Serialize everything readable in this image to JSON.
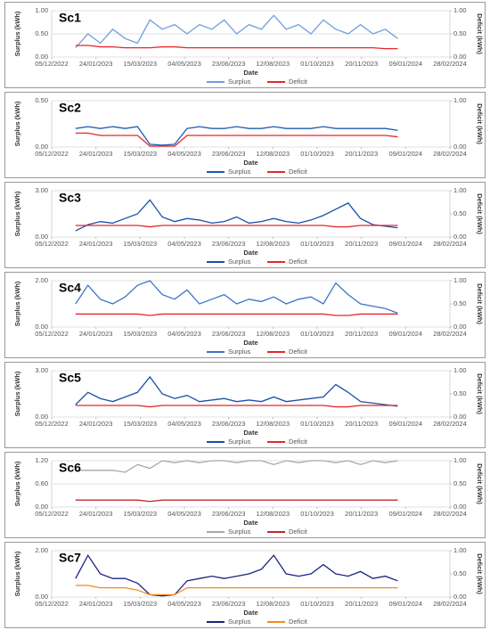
{
  "chart_data": [
    {
      "type": "line",
      "title": "Sc1",
      "xlabel": "Date",
      "ylabel": "Surplus (kWh)",
      "y2label": "Deficit (kWh)",
      "grid": true,
      "x": [
        "01/01/2023",
        "15/01/2023",
        "29/01/2023",
        "12/02/2023",
        "26/02/2023",
        "12/03/2023",
        "26/03/2023",
        "09/04/2023",
        "23/04/2023",
        "07/05/2023",
        "21/05/2023",
        "04/06/2023",
        "18/06/2023",
        "02/07/2023",
        "16/07/2023",
        "30/07/2023",
        "13/08/2023",
        "27/08/2023",
        "10/09/2023",
        "24/09/2023",
        "08/10/2023",
        "22/10/2023",
        "05/11/2023",
        "19/11/2023",
        "03/12/2023",
        "17/12/2023",
        "31/12/2023"
      ],
      "xlim": [
        "05/12/2022",
        "28/02/2024"
      ],
      "xticks": [
        "05/12/2022",
        "24/01/2023",
        "15/03/2023",
        "04/05/2023",
        "23/06/2023",
        "12/08/2023",
        "01/10/2023",
        "20/11/2023",
        "09/01/2024",
        "28/02/2024"
      ],
      "ylim": [
        0,
        1
      ],
      "yticks": [
        {
          "value": 0,
          "label": "0.00"
        },
        {
          "value": 0.5,
          "label": "0.50"
        },
        {
          "value": 1,
          "label": "1.00"
        }
      ],
      "y2lim": [
        0,
        1
      ],
      "y2ticks": [
        {
          "value": 0,
          "label": "0.00"
        },
        {
          "value": 0.5,
          "label": "0.50"
        },
        {
          "value": 1,
          "label": "1.00"
        }
      ],
      "series": [
        {
          "name": "Surplus",
          "color": "#6f9fdc",
          "values": [
            0.2,
            0.5,
            0.3,
            0.6,
            0.4,
            0.3,
            0.8,
            0.6,
            0.7,
            0.5,
            0.7,
            0.6,
            0.8,
            0.5,
            0.7,
            0.6,
            0.9,
            0.6,
            0.7,
            0.5,
            0.8,
            0.6,
            0.5,
            0.7,
            0.5,
            0.6,
            0.4
          ]
        },
        {
          "name": "Deficit",
          "color": "#e8262b",
          "axis": "y2",
          "values": [
            0.25,
            0.25,
            0.22,
            0.22,
            0.2,
            0.2,
            0.2,
            0.22,
            0.22,
            0.2,
            0.2,
            0.2,
            0.2,
            0.2,
            0.2,
            0.2,
            0.2,
            0.2,
            0.2,
            0.2,
            0.2,
            0.2,
            0.2,
            0.2,
            0.2,
            0.18,
            0.18
          ]
        }
      ]
    },
    {
      "type": "line",
      "title": "Sc2",
      "xlabel": "Date",
      "ylabel": "Surplus (kWh)",
      "y2label": "Deficit (kWh)",
      "grid": true,
      "x": [
        "01/01/2023",
        "15/01/2023",
        "29/01/2023",
        "12/02/2023",
        "26/02/2023",
        "12/03/2023",
        "26/03/2023",
        "09/04/2023",
        "23/04/2023",
        "07/05/2023",
        "21/05/2023",
        "04/06/2023",
        "18/06/2023",
        "02/07/2023",
        "16/07/2023",
        "30/07/2023",
        "13/08/2023",
        "27/08/2023",
        "10/09/2023",
        "24/09/2023",
        "08/10/2023",
        "22/10/2023",
        "05/11/2023",
        "19/11/2023",
        "03/12/2023",
        "17/12/2023",
        "31/12/2023"
      ],
      "xlim": [
        "05/12/2022",
        "28/02/2024"
      ],
      "xticks": [
        "05/12/2022",
        "24/01/2023",
        "15/03/2023",
        "04/05/2023",
        "23/06/2023",
        "12/08/2023",
        "01/10/2023",
        "20/11/2023",
        "09/01/2024",
        "28/02/2024"
      ],
      "ylim": [
        0,
        0.5
      ],
      "yticks": [
        {
          "value": 0,
          "label": "0.00"
        },
        {
          "value": 0.5,
          "label": "0.50"
        }
      ],
      "y2lim": [
        0,
        1
      ],
      "y2ticks": [
        {
          "value": 0,
          "label": "0.00"
        },
        {
          "value": 1,
          "label": "1.00"
        }
      ],
      "series": [
        {
          "name": "Surplus",
          "color": "#1f5bb5",
          "values": [
            0.2,
            0.22,
            0.2,
            0.22,
            0.2,
            0.22,
            0.03,
            0.02,
            0.03,
            0.2,
            0.22,
            0.2,
            0.2,
            0.22,
            0.2,
            0.2,
            0.22,
            0.2,
            0.2,
            0.2,
            0.22,
            0.2,
            0.2,
            0.2,
            0.2,
            0.2,
            0.18
          ]
        },
        {
          "name": "Deficit",
          "color": "#e8262b",
          "axis": "y2",
          "values": [
            0.3,
            0.3,
            0.25,
            0.25,
            0.25,
            0.25,
            0.02,
            0.02,
            0.02,
            0.25,
            0.25,
            0.25,
            0.25,
            0.25,
            0.25,
            0.25,
            0.25,
            0.25,
            0.25,
            0.25,
            0.25,
            0.25,
            0.25,
            0.25,
            0.25,
            0.25,
            0.22
          ]
        }
      ]
    },
    {
      "type": "line",
      "title": "Sc3",
      "xlabel": "Date",
      "ylabel": "Surplus (kWh)",
      "y2label": "Deficit (kWh)",
      "grid": true,
      "x": [
        "01/01/2023",
        "15/01/2023",
        "29/01/2023",
        "12/02/2023",
        "26/02/2023",
        "12/03/2023",
        "26/03/2023",
        "09/04/2023",
        "23/04/2023",
        "07/05/2023",
        "21/05/2023",
        "04/06/2023",
        "18/06/2023",
        "02/07/2023",
        "16/07/2023",
        "30/07/2023",
        "13/08/2023",
        "27/08/2023",
        "10/09/2023",
        "24/09/2023",
        "08/10/2023",
        "22/10/2023",
        "05/11/2023",
        "19/11/2023",
        "03/12/2023",
        "17/12/2023",
        "31/12/2023"
      ],
      "xlim": [
        "05/12/2022",
        "28/02/2024"
      ],
      "xticks": [
        "05/12/2022",
        "24/01/2023",
        "15/03/2023",
        "04/05/2023",
        "23/06/2023",
        "12/08/2023",
        "01/10/2023",
        "20/11/2023",
        "09/01/2024",
        "28/02/2024"
      ],
      "ylim": [
        0,
        3
      ],
      "yticks": [
        {
          "value": 0,
          "label": "0.00"
        },
        {
          "value": 3,
          "label": "3.00"
        }
      ],
      "y2lim": [
        0,
        1
      ],
      "y2ticks": [
        {
          "value": 0,
          "label": "0.00"
        },
        {
          "value": 0.5,
          "label": "0.50"
        },
        {
          "value": 1,
          "label": "1.00"
        }
      ],
      "series": [
        {
          "name": "Surplus",
          "color": "#1a4fa8",
          "values": [
            0.4,
            0.8,
            1.0,
            0.9,
            1.2,
            1.5,
            2.4,
            1.3,
            1.0,
            1.2,
            1.1,
            0.9,
            1.0,
            1.3,
            0.9,
            1.0,
            1.2,
            1.0,
            0.9,
            1.1,
            1.4,
            1.8,
            2.2,
            1.2,
            0.8,
            0.7,
            0.6
          ]
        },
        {
          "name": "Deficit",
          "color": "#e8262b",
          "axis": "y2",
          "values": [
            0.25,
            0.25,
            0.25,
            0.25,
            0.25,
            0.25,
            0.22,
            0.25,
            0.25,
            0.25,
            0.25,
            0.25,
            0.25,
            0.25,
            0.25,
            0.25,
            0.25,
            0.25,
            0.25,
            0.25,
            0.25,
            0.22,
            0.22,
            0.25,
            0.25,
            0.25,
            0.25
          ]
        }
      ]
    },
    {
      "type": "line",
      "title": "Sc4",
      "xlabel": "Date",
      "ylabel": "Surplus (kWh)",
      "y2label": "Deficit (kWh)",
      "grid": true,
      "x": [
        "01/01/2023",
        "15/01/2023",
        "29/01/2023",
        "12/02/2023",
        "26/02/2023",
        "12/03/2023",
        "26/03/2023",
        "09/04/2023",
        "23/04/2023",
        "07/05/2023",
        "21/05/2023",
        "04/06/2023",
        "18/06/2023",
        "02/07/2023",
        "16/07/2023",
        "30/07/2023",
        "13/08/2023",
        "27/08/2023",
        "10/09/2023",
        "24/09/2023",
        "08/10/2023",
        "22/10/2023",
        "05/11/2023",
        "19/11/2023",
        "03/12/2023",
        "17/12/2023",
        "31/12/2023"
      ],
      "xlim": [
        "05/12/2022",
        "28/02/2024"
      ],
      "xticks": [
        "05/12/2022",
        "24/01/2023",
        "15/03/2023",
        "04/05/2023",
        "23/06/2023",
        "12/08/2023",
        "01/10/2023",
        "20/11/2023",
        "09/01/2024",
        "28/02/2024"
      ],
      "ylim": [
        0,
        2
      ],
      "yticks": [
        {
          "value": 0,
          "label": "0.00"
        },
        {
          "value": 2,
          "label": "2.00"
        }
      ],
      "y2lim": [
        0,
        1
      ],
      "y2ticks": [
        {
          "value": 0,
          "label": "0.00"
        },
        {
          "value": 0.5,
          "label": "0.50"
        },
        {
          "value": 1,
          "label": "1.00"
        }
      ],
      "series": [
        {
          "name": "Surplus",
          "color": "#3b74c8",
          "values": [
            1.0,
            1.8,
            1.2,
            1.0,
            1.3,
            1.8,
            2.0,
            1.4,
            1.2,
            1.6,
            1.0,
            1.2,
            1.4,
            1.0,
            1.2,
            1.1,
            1.3,
            1.0,
            1.2,
            1.3,
            1.0,
            1.9,
            1.4,
            1.0,
            0.9,
            0.8,
            0.6
          ]
        },
        {
          "name": "Deficit",
          "color": "#e8262b",
          "axis": "y2",
          "values": [
            0.28,
            0.28,
            0.28,
            0.28,
            0.28,
            0.28,
            0.25,
            0.28,
            0.28,
            0.28,
            0.28,
            0.28,
            0.28,
            0.28,
            0.28,
            0.28,
            0.28,
            0.28,
            0.28,
            0.28,
            0.28,
            0.25,
            0.25,
            0.28,
            0.28,
            0.28,
            0.28
          ]
        }
      ]
    },
    {
      "type": "line",
      "title": "Sc5",
      "xlabel": "Date",
      "ylabel": "Surplus (kWh)",
      "y2label": "Deficit (kWh)",
      "grid": true,
      "x": [
        "01/01/2023",
        "15/01/2023",
        "29/01/2023",
        "12/02/2023",
        "26/02/2023",
        "12/03/2023",
        "26/03/2023",
        "09/04/2023",
        "23/04/2023",
        "07/05/2023",
        "21/05/2023",
        "04/06/2023",
        "18/06/2023",
        "02/07/2023",
        "16/07/2023",
        "30/07/2023",
        "13/08/2023",
        "27/08/2023",
        "10/09/2023",
        "24/09/2023",
        "08/10/2023",
        "22/10/2023",
        "05/11/2023",
        "19/11/2023",
        "03/12/2023",
        "17/12/2023",
        "31/12/2023"
      ],
      "xlim": [
        "05/12/2022",
        "28/02/2024"
      ],
      "xticks": [
        "05/12/2022",
        "24/01/2023",
        "15/03/2023",
        "04/05/2023",
        "23/06/2023",
        "12/08/2023",
        "01/10/2023",
        "20/11/2023",
        "09/01/2024",
        "28/02/2024"
      ],
      "ylim": [
        0,
        3
      ],
      "yticks": [
        {
          "value": 0,
          "label": "0.00"
        },
        {
          "value": 3,
          "label": "3.00"
        }
      ],
      "y2lim": [
        0,
        1
      ],
      "y2ticks": [
        {
          "value": 0,
          "label": "0.00"
        },
        {
          "value": 0.5,
          "label": "0.50"
        },
        {
          "value": 1,
          "label": "1.00"
        }
      ],
      "series": [
        {
          "name": "Surplus",
          "color": "#1a4fa8",
          "values": [
            0.8,
            1.6,
            1.2,
            1.0,
            1.3,
            1.6,
            2.6,
            1.5,
            1.2,
            1.4,
            1.0,
            1.1,
            1.2,
            1.0,
            1.1,
            1.0,
            1.3,
            1.0,
            1.1,
            1.2,
            1.3,
            2.1,
            1.6,
            1.0,
            0.9,
            0.8,
            0.7
          ]
        },
        {
          "name": "Deficit",
          "color": "#e8262b",
          "axis": "y2",
          "values": [
            0.25,
            0.25,
            0.25,
            0.25,
            0.25,
            0.25,
            0.22,
            0.25,
            0.25,
            0.25,
            0.25,
            0.25,
            0.25,
            0.25,
            0.25,
            0.25,
            0.25,
            0.25,
            0.25,
            0.25,
            0.25,
            0.22,
            0.22,
            0.25,
            0.25,
            0.25,
            0.25
          ]
        }
      ]
    },
    {
      "type": "line",
      "title": "Sc6",
      "xlabel": "Date",
      "ylabel": "Surplus (kWh)",
      "y2label": "Deficit (kWh)",
      "grid": true,
      "x": [
        "01/01/2023",
        "15/01/2023",
        "29/01/2023",
        "12/02/2023",
        "26/02/2023",
        "12/03/2023",
        "26/03/2023",
        "09/04/2023",
        "23/04/2023",
        "07/05/2023",
        "21/05/2023",
        "04/06/2023",
        "18/06/2023",
        "02/07/2023",
        "16/07/2023",
        "30/07/2023",
        "13/08/2023",
        "27/08/2023",
        "10/09/2023",
        "24/09/2023",
        "08/10/2023",
        "22/10/2023",
        "05/11/2023",
        "19/11/2023",
        "03/12/2023",
        "17/12/2023",
        "31/12/2023"
      ],
      "xlim": [
        "05/12/2022",
        "28/02/2024"
      ],
      "xticks": [
        "05/12/2022",
        "24/01/2023",
        "15/03/2023",
        "04/05/2023",
        "23/06/2023",
        "12/08/2023",
        "01/10/2023",
        "20/11/2023",
        "09/01/2024",
        "28/02/2024"
      ],
      "ylim": [
        0,
        1.2
      ],
      "yticks": [
        {
          "value": 0,
          "label": "0.00"
        },
        {
          "value": 0.6,
          "label": "0.60"
        },
        {
          "value": 1.2,
          "label": "1.20"
        }
      ],
      "y2lim": [
        0,
        1
      ],
      "y2ticks": [
        {
          "value": 0,
          "label": "0.00"
        },
        {
          "value": 0.5,
          "label": "0.50"
        },
        {
          "value": 1,
          "label": "1.00"
        }
      ],
      "series": [
        {
          "name": "Surplus",
          "color": "#a8a8a8",
          "values": [
            0.95,
            0.95,
            0.95,
            0.95,
            0.9,
            1.1,
            1.0,
            1.2,
            1.15,
            1.2,
            1.15,
            1.2,
            1.2,
            1.15,
            1.2,
            1.2,
            1.1,
            1.2,
            1.15,
            1.2,
            1.2,
            1.15,
            1.2,
            1.1,
            1.2,
            1.15,
            1.2
          ]
        },
        {
          "name": "Deficit",
          "color": "#c0282c",
          "axis": "y2",
          "values": [
            0.15,
            0.15,
            0.15,
            0.15,
            0.15,
            0.15,
            0.12,
            0.15,
            0.15,
            0.15,
            0.15,
            0.15,
            0.15,
            0.15,
            0.15,
            0.15,
            0.15,
            0.15,
            0.15,
            0.15,
            0.15,
            0.15,
            0.15,
            0.15,
            0.15,
            0.15,
            0.15
          ]
        }
      ]
    },
    {
      "type": "line",
      "title": "Sc7",
      "xlabel": "Date",
      "ylabel": "Surplus (kWh)",
      "y2label": "Deficit (kWh)",
      "grid": true,
      "x": [
        "01/01/2023",
        "15/01/2023",
        "29/01/2023",
        "12/02/2023",
        "26/02/2023",
        "12/03/2023",
        "26/03/2023",
        "09/04/2023",
        "23/04/2023",
        "07/05/2023",
        "21/05/2023",
        "04/06/2023",
        "18/06/2023",
        "02/07/2023",
        "16/07/2023",
        "30/07/2023",
        "13/08/2023",
        "27/08/2023",
        "10/09/2023",
        "24/09/2023",
        "08/10/2023",
        "22/10/2023",
        "05/11/2023",
        "19/11/2023",
        "03/12/2023",
        "17/12/2023",
        "31/12/2023"
      ],
      "xlim": [
        "05/12/2022",
        "28/02/2024"
      ],
      "xticks": [
        "05/12/2022",
        "24/01/2023",
        "15/03/2023",
        "04/05/2023",
        "23/06/2023",
        "12/08/2023",
        "01/10/2023",
        "20/11/2023",
        "09/01/2024",
        "28/02/2024"
      ],
      "ylim": [
        0,
        2
      ],
      "yticks": [
        {
          "value": 0,
          "label": "0.00"
        },
        {
          "value": 2,
          "label": "2.00"
        }
      ],
      "y2lim": [
        0,
        1
      ],
      "y2ticks": [
        {
          "value": 0,
          "label": "0.00"
        },
        {
          "value": 0.5,
          "label": "0.50"
        },
        {
          "value": 1,
          "label": "1.00"
        }
      ],
      "series": [
        {
          "name": "Surplus",
          "color": "#1a237e",
          "values": [
            0.8,
            1.8,
            1.0,
            0.8,
            0.8,
            0.6,
            0.1,
            0.05,
            0.1,
            0.7,
            0.8,
            0.9,
            0.8,
            0.9,
            1.0,
            1.2,
            1.8,
            1.0,
            0.9,
            1.0,
            1.4,
            1.0,
            0.9,
            1.1,
            0.8,
            0.9,
            0.7
          ]
        },
        {
          "name": "Deficit",
          "color": "#f5891f",
          "axis": "y2",
          "values": [
            0.25,
            0.25,
            0.2,
            0.2,
            0.2,
            0.15,
            0.05,
            0.05,
            0.05,
            0.2,
            0.2,
            0.2,
            0.2,
            0.2,
            0.2,
            0.2,
            0.2,
            0.2,
            0.2,
            0.2,
            0.2,
            0.2,
            0.2,
            0.2,
            0.2,
            0.2,
            0.2
          ]
        }
      ]
    }
  ]
}
